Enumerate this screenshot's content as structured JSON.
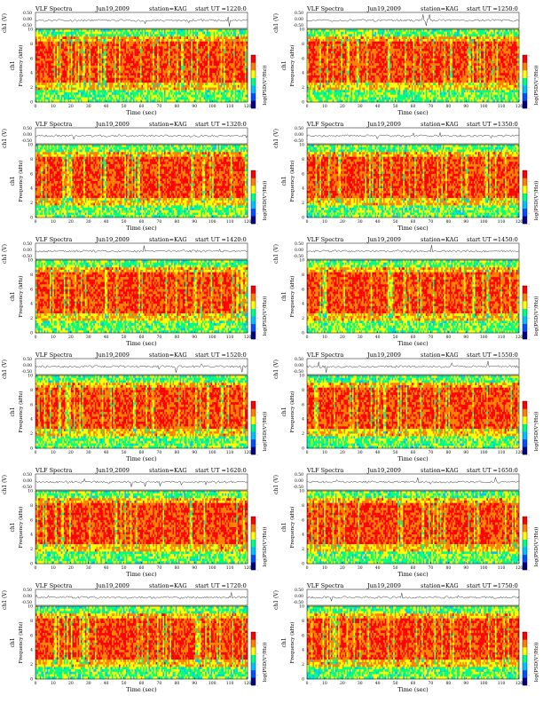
{
  "chart_data": [
    {
      "type": "heatmap",
      "title_left": "VLF Spectra",
      "date": "Jun19,2009",
      "station": "station=KAG",
      "start": "start  UT =1220:0",
      "ch_label": "ch1 (V)",
      "ch_ticks": [
        "0.50",
        "0.00",
        "-0.50"
      ],
      "y_label": "ch1",
      "y_sub": "Frequency (kHz)",
      "y_ticks": [
        "0",
        "2",
        "4",
        "6",
        "8",
        "10"
      ],
      "x_label": "Time (sec)",
      "x_ticks": [
        "0",
        "10",
        "20",
        "30",
        "40",
        "50",
        "60",
        "70",
        "80",
        "90",
        "100",
        "110",
        "120"
      ],
      "xlim": [
        0,
        120
      ],
      "ylim": [
        0,
        10
      ],
      "cb_label": "log(PSD(V²/Hz))",
      "cb_ticks": [
        "-",
        "-",
        "-",
        "-",
        "-",
        "-"
      ],
      "colors": [
        "#000080",
        "#0050ff",
        "#00c0ff",
        "#00ff80",
        "#ffff00",
        "#ff8000",
        "#ff0000"
      ]
    },
    {
      "type": "heatmap",
      "title_left": "VLF Spectra",
      "date": "Jun19,2009",
      "station": "station=KAG",
      "start": "start  UT =1250:0",
      "ch_label": "ch1 (V)",
      "ch_ticks": [
        "0.50",
        "0.00",
        "-0.50"
      ],
      "y_label": "ch1",
      "y_sub": "Frequency (kHz)",
      "y_ticks": [
        "0",
        "2",
        "4",
        "6",
        "8",
        "10"
      ],
      "x_label": "Time (sec)",
      "x_ticks": [
        "0",
        "10",
        "20",
        "30",
        "40",
        "50",
        "60",
        "70",
        "80",
        "90",
        "100",
        "110",
        "120"
      ],
      "xlim": [
        0,
        120
      ],
      "ylim": [
        0,
        10
      ],
      "cb_label": "log(PSD(V²/Hz))",
      "cb_ticks": [
        "-",
        "-",
        "-",
        "-",
        "-",
        "-"
      ],
      "colors": [
        "#000080",
        "#0050ff",
        "#00c0ff",
        "#00ff80",
        "#ffff00",
        "#ff8000",
        "#ff0000"
      ]
    },
    {
      "type": "heatmap",
      "title_left": "VLF Spectra",
      "date": "Jun19,2009",
      "station": "station=KAG",
      "start": "start  UT =1320:0",
      "ch_label": "ch1 (V)",
      "ch_ticks": [
        "0.50",
        "0.00",
        "-0.50"
      ],
      "y_label": "ch1",
      "y_sub": "Frequency (kHz)",
      "y_ticks": [
        "0",
        "2",
        "4",
        "6",
        "8",
        "10"
      ],
      "x_label": "Time (sec)",
      "x_ticks": [
        "0",
        "10",
        "20",
        "30",
        "40",
        "50",
        "60",
        "70",
        "80",
        "90",
        "100",
        "110",
        "120"
      ],
      "xlim": [
        0,
        120
      ],
      "ylim": [
        0,
        10
      ],
      "cb_label": "log(PSD(V²/Hz))",
      "cb_ticks": [
        "-",
        "-",
        "-",
        "-",
        "-",
        "-"
      ],
      "colors": [
        "#000080",
        "#0050ff",
        "#00c0ff",
        "#00ff80",
        "#ffff00",
        "#ff8000",
        "#ff0000"
      ]
    },
    {
      "type": "heatmap",
      "title_left": "VLF Spectra",
      "date": "Jun19,2009",
      "station": "station=KAG",
      "start": "start  UT =1350:0",
      "ch_label": "ch1 (V)",
      "ch_ticks": [
        "0.50",
        "0.00",
        "-0.50"
      ],
      "y_label": "ch1",
      "y_sub": "Frequency (kHz)",
      "y_ticks": [
        "0",
        "2",
        "4",
        "6",
        "8",
        "10"
      ],
      "x_label": "Time (sec)",
      "x_ticks": [
        "0",
        "10",
        "20",
        "30",
        "40",
        "50",
        "60",
        "70",
        "80",
        "90",
        "100",
        "110",
        "120"
      ],
      "xlim": [
        0,
        120
      ],
      "ylim": [
        0,
        10
      ],
      "cb_label": "log(PSD(V²/Hz))",
      "cb_ticks": [
        "-",
        "-",
        "-",
        "-",
        "-",
        "-"
      ],
      "colors": [
        "#000080",
        "#0050ff",
        "#00c0ff",
        "#00ff80",
        "#ffff00",
        "#ff8000",
        "#ff0000"
      ]
    },
    {
      "type": "heatmap",
      "title_left": "VLF Spectra",
      "date": "Jun19,2009",
      "station": "station=KAG",
      "start": "start  UT =1420:0",
      "ch_label": "ch1 (V)",
      "ch_ticks": [
        "0.50",
        "0.00",
        "-0.50"
      ],
      "y_label": "ch1",
      "y_sub": "Frequency (kHz)",
      "y_ticks": [
        "0",
        "2",
        "4",
        "6",
        "8",
        "10"
      ],
      "x_label": "Time (sec)",
      "x_ticks": [
        "0",
        "10",
        "20",
        "30",
        "40",
        "50",
        "60",
        "70",
        "80",
        "90",
        "100",
        "110",
        "120"
      ],
      "xlim": [
        0,
        120
      ],
      "ylim": [
        0,
        10
      ],
      "cb_label": "log(PSD(V²/Hz))",
      "cb_ticks": [
        "-",
        "-",
        "-",
        "-",
        "-",
        "-"
      ],
      "colors": [
        "#000080",
        "#0050ff",
        "#00c0ff",
        "#00ff80",
        "#ffff00",
        "#ff8000",
        "#ff0000"
      ]
    },
    {
      "type": "heatmap",
      "title_left": "VLF Spectra",
      "date": "Jun19,2009",
      "station": "station=KAG",
      "start": "start  UT =1450:0",
      "ch_label": "ch1 (V)",
      "ch_ticks": [
        "0.50",
        "0.00",
        "-0.50"
      ],
      "y_label": "ch1",
      "y_sub": "Frequency (kHz)",
      "y_ticks": [
        "0",
        "2",
        "4",
        "6",
        "8",
        "10"
      ],
      "x_label": "Time (sec)",
      "x_ticks": [
        "0",
        "10",
        "20",
        "30",
        "40",
        "50",
        "60",
        "70",
        "80",
        "90",
        "100",
        "110",
        "120"
      ],
      "xlim": [
        0,
        120
      ],
      "ylim": [
        0,
        10
      ],
      "cb_label": "log(PSD(V²/Hz))",
      "cb_ticks": [
        "-",
        "-",
        "-",
        "-",
        "-",
        "-"
      ],
      "colors": [
        "#000080",
        "#0050ff",
        "#00c0ff",
        "#00ff80",
        "#ffff00",
        "#ff8000",
        "#ff0000"
      ]
    },
    {
      "type": "heatmap",
      "title_left": "VLF Spectra",
      "date": "Jun19,2009",
      "station": "station=KAG",
      "start": "start  UT =1520:0",
      "ch_label": "ch1 (V)",
      "ch_ticks": [
        "0.50",
        "0.00",
        "-0.50"
      ],
      "y_label": "ch1",
      "y_sub": "Frequency (kHz)",
      "y_ticks": [
        "0",
        "2",
        "4",
        "6",
        "8",
        "10"
      ],
      "x_label": "Time (sec)",
      "x_ticks": [
        "0",
        "10",
        "20",
        "30",
        "40",
        "50",
        "60",
        "70",
        "80",
        "90",
        "100",
        "110",
        "120"
      ],
      "xlim": [
        0,
        120
      ],
      "ylim": [
        0,
        10
      ],
      "cb_label": "log(PSD(V²/Hz))",
      "cb_ticks": [
        "-",
        "-",
        "-",
        "-",
        "-",
        "-"
      ],
      "colors": [
        "#000080",
        "#0050ff",
        "#00c0ff",
        "#00ff80",
        "#ffff00",
        "#ff8000",
        "#ff0000"
      ]
    },
    {
      "type": "heatmap",
      "title_left": "VLF Spectra",
      "date": "Jun19,2009",
      "station": "station=KAG",
      "start": "start  UT =1550:0",
      "ch_label": "ch1 (V)",
      "ch_ticks": [
        "0.50",
        "0.00",
        "-0.50"
      ],
      "y_label": "ch1",
      "y_sub": "Frequency (kHz)",
      "y_ticks": [
        "0",
        "2",
        "4",
        "6",
        "8",
        "10"
      ],
      "x_label": "Time (sec)",
      "x_ticks": [
        "0",
        "10",
        "20",
        "30",
        "40",
        "50",
        "60",
        "70",
        "80",
        "90",
        "100",
        "110",
        "120"
      ],
      "xlim": [
        0,
        120
      ],
      "ylim": [
        0,
        10
      ],
      "cb_label": "log(PSD(V²/Hz))",
      "cb_ticks": [
        "-",
        "-",
        "-",
        "-",
        "-",
        "-"
      ],
      "colors": [
        "#000080",
        "#0050ff",
        "#00c0ff",
        "#00ff80",
        "#ffff00",
        "#ff8000",
        "#ff0000"
      ]
    },
    {
      "type": "heatmap",
      "title_left": "VLF Spectra",
      "date": "Jun19,2009",
      "station": "station=KAG",
      "start": "start  UT =1620:0",
      "ch_label": "ch1 (V)",
      "ch_ticks": [
        "0.50",
        "0.00",
        "-0.50"
      ],
      "y_label": "ch1",
      "y_sub": "Frequency (kHz)",
      "y_ticks": [
        "0",
        "2",
        "4",
        "6",
        "8",
        "10"
      ],
      "x_label": "Time (sec)",
      "x_ticks": [
        "0",
        "10",
        "20",
        "30",
        "40",
        "50",
        "60",
        "70",
        "80",
        "90",
        "100",
        "110",
        "120"
      ],
      "xlim": [
        0,
        120
      ],
      "ylim": [
        0,
        10
      ],
      "cb_label": "log(PSD(V²/Hz))",
      "cb_ticks": [
        "-",
        "-",
        "-",
        "-",
        "-",
        "-"
      ],
      "colors": [
        "#000080",
        "#0050ff",
        "#00c0ff",
        "#00ff80",
        "#ffff00",
        "#ff8000",
        "#ff0000"
      ]
    },
    {
      "type": "heatmap",
      "title_left": "VLF Spectra",
      "date": "Jun19,2009",
      "station": "station=KAG",
      "start": "start  UT =1650:0",
      "ch_label": "ch1 (V)",
      "ch_ticks": [
        "0.50",
        "0.00",
        "-0.50"
      ],
      "y_label": "ch1",
      "y_sub": "Frequency (kHz)",
      "y_ticks": [
        "0",
        "2",
        "4",
        "6",
        "8",
        "10"
      ],
      "x_label": "Time (sec)",
      "x_ticks": [
        "0",
        "10",
        "20",
        "30",
        "40",
        "50",
        "60",
        "70",
        "80",
        "90",
        "100",
        "110",
        "120"
      ],
      "xlim": [
        0,
        120
      ],
      "ylim": [
        0,
        10
      ],
      "cb_label": "log(PSD(V²/Hz))",
      "cb_ticks": [
        "-",
        "-",
        "-",
        "-",
        "-",
        "-"
      ],
      "colors": [
        "#000080",
        "#0050ff",
        "#00c0ff",
        "#00ff80",
        "#ffff00",
        "#ff8000",
        "#ff0000"
      ]
    },
    {
      "type": "heatmap",
      "title_left": "VLF Spectra",
      "date": "Jun19,2009",
      "station": "station=KAG",
      "start": "start  UT =1720:0",
      "ch_label": "ch1 (V)",
      "ch_ticks": [
        "0.50",
        "0.00",
        "-0.50"
      ],
      "y_label": "ch1",
      "y_sub": "Frequency (kHz)",
      "y_ticks": [
        "0",
        "2",
        "4",
        "6",
        "8",
        "10"
      ],
      "x_label": "Time (sec)",
      "x_ticks": [
        "0",
        "10",
        "20",
        "30",
        "40",
        "50",
        "60",
        "70",
        "80",
        "90",
        "100",
        "110",
        "120"
      ],
      "xlim": [
        0,
        120
      ],
      "ylim": [
        0,
        10
      ],
      "cb_label": "log(PSD(V²/Hz))",
      "cb_ticks": [
        "-",
        "-",
        "-",
        "-",
        "-",
        "-"
      ],
      "colors": [
        "#000080",
        "#0050ff",
        "#00c0ff",
        "#00ff80",
        "#ffff00",
        "#ff8000",
        "#ff0000"
      ]
    },
    {
      "type": "heatmap",
      "title_left": "VLF Spectra",
      "date": "Jun19,2009",
      "station": "station=KAG",
      "start": "start  UT =1750:0",
      "ch_label": "ch1 (V)",
      "ch_ticks": [
        "0.50",
        "0.00",
        "-0.50"
      ],
      "y_label": "ch1",
      "y_sub": "Frequency (kHz)",
      "y_ticks": [
        "0",
        "2",
        "4",
        "6",
        "8",
        "10"
      ],
      "x_label": "Time (sec)",
      "x_ticks": [
        "0",
        "10",
        "20",
        "30",
        "40",
        "50",
        "60",
        "70",
        "80",
        "90",
        "100",
        "110",
        "120"
      ],
      "xlim": [
        0,
        120
      ],
      "ylim": [
        0,
        10
      ],
      "cb_label": "log(PSD(V²/Hz))",
      "cb_ticks": [
        "-",
        "-",
        "-",
        "-",
        "-",
        "-"
      ],
      "colors": [
        "#000080",
        "#0050ff",
        "#00c0ff",
        "#00ff80",
        "#ffff00",
        "#ff8000",
        "#ff0000"
      ]
    }
  ]
}
